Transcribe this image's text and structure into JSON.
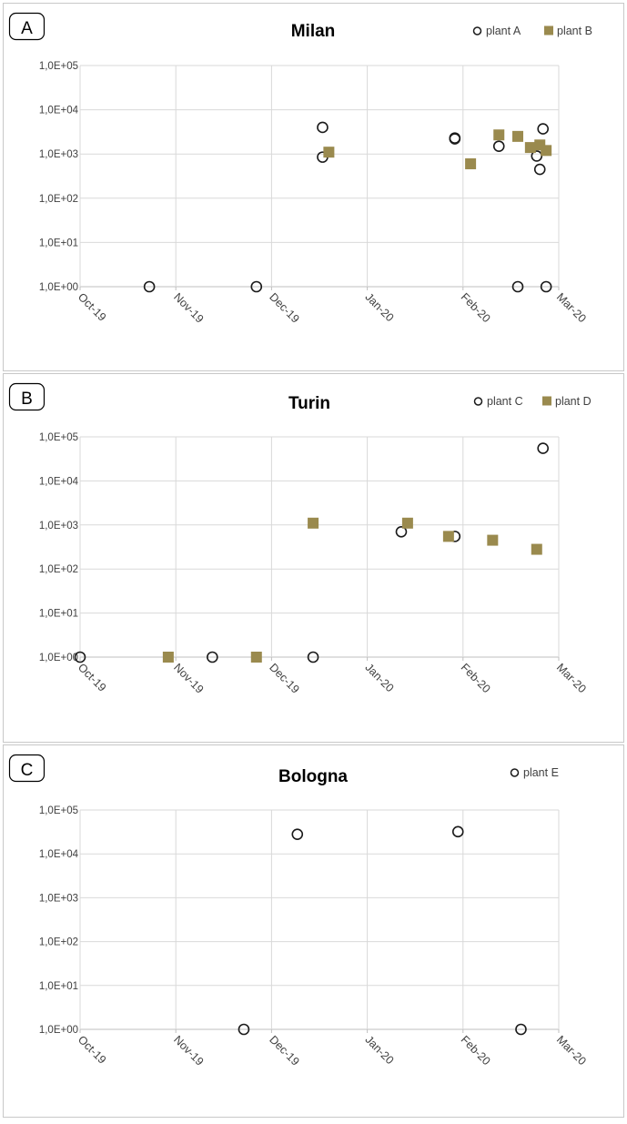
{
  "chart_data": [
    {
      "type": "scatter",
      "panel_label": "A",
      "title": "Milan",
      "y_scale": "log",
      "ylim": [
        1,
        100000
      ],
      "yticks": [
        "1,0E+00",
        "1,0E+01",
        "1,0E+02",
        "1,0E+03",
        "1,0E+04",
        "1,0E+05"
      ],
      "xlim": [
        "2019-10-01",
        "2020-03-01"
      ],
      "xticks": [
        "Oct-19",
        "Nov-19",
        "Dec-19",
        "Jan-20",
        "Feb-20",
        "Mar-20"
      ],
      "grid": true,
      "legend_position": "top-right",
      "series": [
        {
          "name": "plant A",
          "marker": "open-circle",
          "color": "#1a1a1a",
          "points": [
            [
              "2019-10-23",
              1
            ],
            [
              "2019-11-26",
              1
            ],
            [
              "2019-12-17",
              4000
            ],
            [
              "2019-12-17",
              850
            ],
            [
              "2020-01-28",
              2300
            ],
            [
              "2020-01-28",
              2200
            ],
            [
              "2020-02-11",
              1500
            ],
            [
              "2020-02-17",
              1
            ],
            [
              "2020-02-23",
              900
            ],
            [
              "2020-02-24",
              450
            ],
            [
              "2020-02-25",
              3700
            ],
            [
              "2020-02-26",
              1
            ]
          ]
        },
        {
          "name": "plant B",
          "marker": "filled-square",
          "color": "#9a8a4e",
          "points": [
            [
              "2019-12-19",
              1100
            ],
            [
              "2020-02-02",
              600
            ],
            [
              "2020-02-11",
              2700
            ],
            [
              "2020-02-17",
              2500
            ],
            [
              "2020-02-21",
              1400
            ],
            [
              "2020-02-24",
              1600
            ],
            [
              "2020-02-26",
              1200
            ]
          ]
        }
      ]
    },
    {
      "type": "scatter",
      "panel_label": "B",
      "title": "Turin",
      "y_scale": "log",
      "ylim": [
        1,
        100000
      ],
      "yticks": [
        "1,0E+00",
        "1,0E+01",
        "1,0E+02",
        "1,0E+03",
        "1,0E+04",
        "1,0E+05"
      ],
      "xlim": [
        "2019-10-01",
        "2020-03-01"
      ],
      "xticks": [
        "Oct-19",
        "Nov-19",
        "Dec-19",
        "Jan-20",
        "Feb-20",
        "Mar-20"
      ],
      "grid": true,
      "legend_position": "top-right",
      "series": [
        {
          "name": "plant C",
          "marker": "open-circle",
          "color": "#1a1a1a",
          "points": [
            [
              "2019-10-01",
              1
            ],
            [
              "2019-11-12",
              1
            ],
            [
              "2019-12-14",
              1
            ],
            [
              "2020-01-11",
              700
            ],
            [
              "2020-01-28",
              550
            ],
            [
              "2020-02-25",
              55000
            ]
          ]
        },
        {
          "name": "plant D",
          "marker": "filled-square",
          "color": "#9a8a4e",
          "points": [
            [
              "2019-10-29",
              1
            ],
            [
              "2019-11-26",
              1
            ],
            [
              "2019-12-14",
              1100
            ],
            [
              "2020-01-13",
              1100
            ],
            [
              "2020-01-26",
              550
            ],
            [
              "2020-02-09",
              450
            ],
            [
              "2020-02-23",
              280
            ]
          ]
        }
      ]
    },
    {
      "type": "scatter",
      "panel_label": "C",
      "title": "Bologna",
      "y_scale": "log",
      "ylim": [
        1,
        100000
      ],
      "yticks": [
        "1,0E+00",
        "1,0E+01",
        "1,0E+02",
        "1,0E+03",
        "1,0E+04",
        "1,0E+05"
      ],
      "xlim": [
        "2019-10-01",
        "2020-03-01"
      ],
      "xticks": [
        "Oct-19",
        "Nov-19",
        "Dec-19",
        "Jan-20",
        "Feb-20",
        "Mar-20"
      ],
      "grid": true,
      "legend_position": "top-right",
      "series": [
        {
          "name": "plant E",
          "marker": "open-circle",
          "color": "#1a1a1a",
          "points": [
            [
              "2019-11-22",
              1
            ],
            [
              "2019-12-09",
              28000
            ],
            [
              "2020-01-29",
              32000
            ],
            [
              "2020-02-18",
              1
            ]
          ]
        }
      ]
    }
  ],
  "colors": {
    "border": "#c8c8c8",
    "grid": "#d9d9d9",
    "axis": "#bfbfbf",
    "text": "#404040",
    "title": "#000000"
  }
}
